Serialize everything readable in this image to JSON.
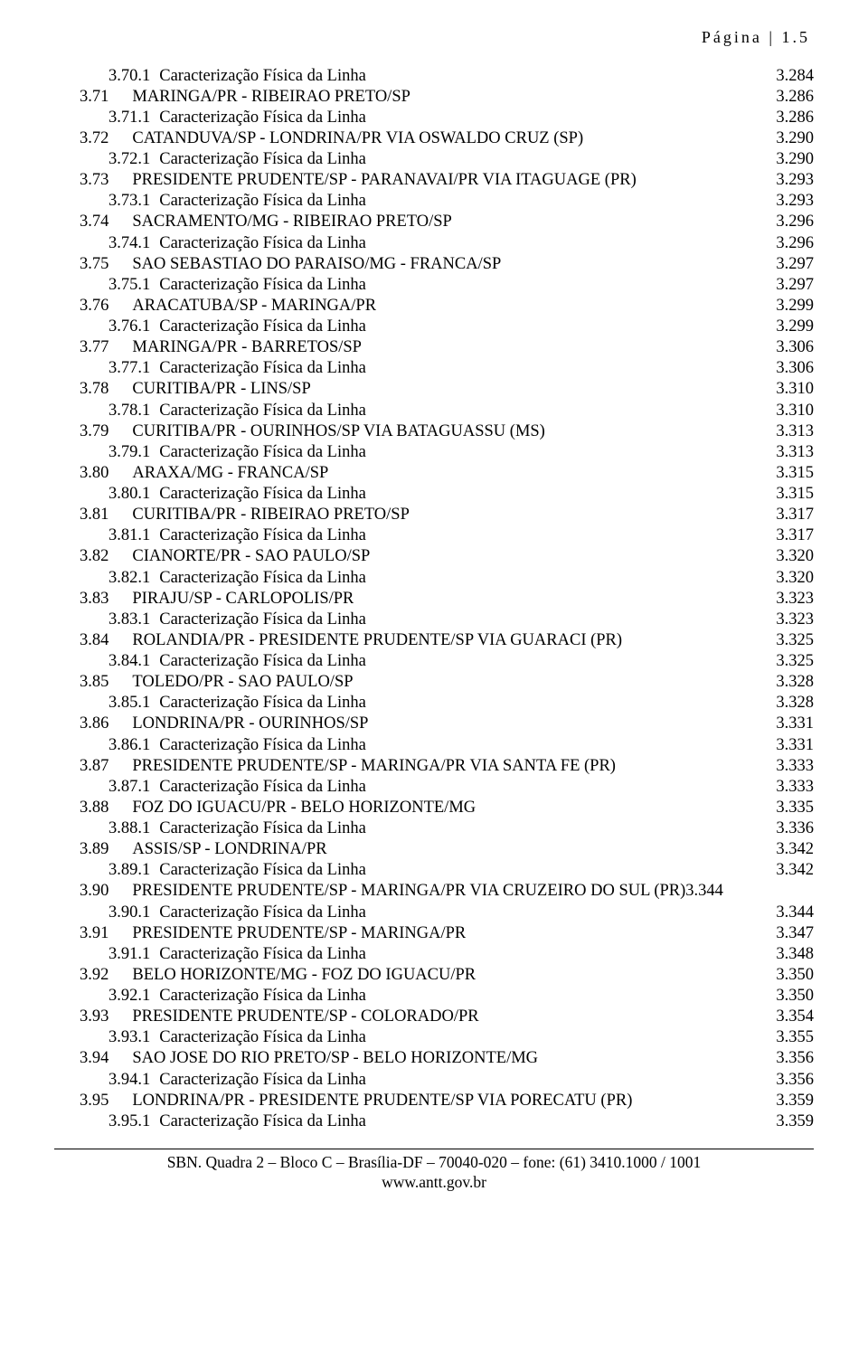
{
  "header": {
    "text": "Página | 1.5"
  },
  "defaults": {
    "caract": "Caracterização Física da Linha"
  },
  "toc": [
    {
      "n": "3.70.1",
      "t": "@caract",
      "p": "3.284",
      "lvl": 2
    },
    {
      "n": "3.71",
      "t": "MARINGA/PR - RIBEIRAO PRETO/SP",
      "p": "3.286",
      "lvl": 1
    },
    {
      "n": "3.71.1",
      "t": "@caract",
      "p": "3.286",
      "lvl": 2
    },
    {
      "n": "3.72",
      "t": "CATANDUVA/SP - LONDRINA/PR VIA OSWALDO CRUZ (SP)",
      "p": "3.290",
      "lvl": 1
    },
    {
      "n": "3.72.1",
      "t": "@caract",
      "p": "3.290",
      "lvl": 2
    },
    {
      "n": "3.73",
      "t": "PRESIDENTE PRUDENTE/SP - PARANAVAI/PR VIA ITAGUAGE (PR)",
      "p": "3.293",
      "lvl": 1
    },
    {
      "n": "3.73.1",
      "t": "@caract",
      "p": "3.293",
      "lvl": 2
    },
    {
      "n": "3.74",
      "t": "SACRAMENTO/MG - RIBEIRAO PRETO/SP",
      "p": "3.296",
      "lvl": 1
    },
    {
      "n": "3.74.1",
      "t": "@caract",
      "p": "3.296",
      "lvl": 2
    },
    {
      "n": "3.75",
      "t": "SAO SEBASTIAO DO PARAISO/MG - FRANCA/SP",
      "p": "3.297",
      "lvl": 1
    },
    {
      "n": "3.75.1",
      "t": "@caract",
      "p": "3.297",
      "lvl": 2
    },
    {
      "n": "3.76",
      "t": "ARACATUBA/SP - MARINGA/PR",
      "p": "3.299",
      "lvl": 1
    },
    {
      "n": "3.76.1",
      "t": "@caract",
      "p": "3.299",
      "lvl": 2
    },
    {
      "n": "3.77",
      "t": "MARINGA/PR - BARRETOS/SP",
      "p": "3.306",
      "lvl": 1
    },
    {
      "n": "3.77.1",
      "t": "@caract",
      "p": "3.306",
      "lvl": 2
    },
    {
      "n": "3.78",
      "t": "CURITIBA/PR - LINS/SP",
      "p": "3.310",
      "lvl": 1
    },
    {
      "n": "3.78.1",
      "t": "@caract",
      "p": "3.310",
      "lvl": 2
    },
    {
      "n": "3.79",
      "t": "CURITIBA/PR - OURINHOS/SP VIA BATAGUASSU (MS)",
      "p": "3.313",
      "lvl": 1
    },
    {
      "n": "3.79.1",
      "t": "@caract",
      "p": "3.313",
      "lvl": 2
    },
    {
      "n": "3.80",
      "t": "ARAXA/MG - FRANCA/SP",
      "p": "3.315",
      "lvl": 1
    },
    {
      "n": "3.80.1",
      "t": "@caract",
      "p": "3.315",
      "lvl": 2
    },
    {
      "n": "3.81",
      "t": "CURITIBA/PR - RIBEIRAO PRETO/SP",
      "p": "3.317",
      "lvl": 1
    },
    {
      "n": "3.81.1",
      "t": "@caract",
      "p": "3.317",
      "lvl": 2
    },
    {
      "n": "3.82",
      "t": "CIANORTE/PR - SAO PAULO/SP",
      "p": "3.320",
      "lvl": 1
    },
    {
      "n": "3.82.1",
      "t": "@caract",
      "p": "3.320",
      "lvl": 2
    },
    {
      "n": "3.83",
      "t": "PIRAJU/SP - CARLOPOLIS/PR",
      "p": "3.323",
      "lvl": 1
    },
    {
      "n": "3.83.1",
      "t": "@caract",
      "p": "3.323",
      "lvl": 2
    },
    {
      "n": "3.84",
      "t": "ROLANDIA/PR - PRESIDENTE PRUDENTE/SP VIA GUARACI (PR)",
      "p": "3.325",
      "lvl": 1
    },
    {
      "n": "3.84.1",
      "t": "@caract",
      "p": "3.325",
      "lvl": 2
    },
    {
      "n": "3.85",
      "t": "TOLEDO/PR - SAO PAULO/SP",
      "p": "3.328",
      "lvl": 1
    },
    {
      "n": "3.85.1",
      "t": "@caract",
      "p": "3.328",
      "lvl": 2
    },
    {
      "n": "3.86",
      "t": "LONDRINA/PR - OURINHOS/SP",
      "p": "3.331",
      "lvl": 1
    },
    {
      "n": "3.86.1",
      "t": "@caract",
      "p": "3.331",
      "lvl": 2
    },
    {
      "n": "3.87",
      "t": "PRESIDENTE PRUDENTE/SP - MARINGA/PR VIA SANTA FE (PR)",
      "p": "3.333",
      "lvl": 1
    },
    {
      "n": "3.87.1",
      "t": "@caract",
      "p": "3.333",
      "lvl": 2
    },
    {
      "n": "3.88",
      "t": "FOZ DO IGUACU/PR - BELO HORIZONTE/MG",
      "p": "3.335",
      "lvl": 1
    },
    {
      "n": "3.88.1",
      "t": "@caract",
      "p": "3.336",
      "lvl": 2
    },
    {
      "n": "3.89",
      "t": "ASSIS/SP - LONDRINA/PR",
      "p": "3.342",
      "lvl": 1
    },
    {
      "n": "3.89.1",
      "t": "@caract",
      "p": "3.342",
      "lvl": 2
    },
    {
      "n": "3.90",
      "t": "PRESIDENTE PRUDENTE/SP - MARINGA/PR VIA CRUZEIRO DO SUL (PR)",
      "p": "3.344",
      "lvl": 1,
      "noleader": true
    },
    {
      "n": "3.90.1",
      "t": "@caract",
      "p": "3.344",
      "lvl": 2
    },
    {
      "n": "3.91",
      "t": "PRESIDENTE PRUDENTE/SP - MARINGA/PR",
      "p": "3.347",
      "lvl": 1
    },
    {
      "n": "3.91.1",
      "t": "@caract",
      "p": "3.348",
      "lvl": 2
    },
    {
      "n": "3.92",
      "t": "BELO HORIZONTE/MG - FOZ DO IGUACU/PR",
      "p": "3.350",
      "lvl": 1
    },
    {
      "n": "3.92.1",
      "t": "@caract",
      "p": "3.350",
      "lvl": 2
    },
    {
      "n": "3.93",
      "t": "PRESIDENTE PRUDENTE/SP - COLORADO/PR",
      "p": "3.354",
      "lvl": 1
    },
    {
      "n": "3.93.1",
      "t": "@caract",
      "p": "3.355",
      "lvl": 2
    },
    {
      "n": "3.94",
      "t": "SAO JOSE DO RIO PRETO/SP - BELO HORIZONTE/MG",
      "p": "3.356",
      "lvl": 1
    },
    {
      "n": "3.94.1",
      "t": "@caract",
      "p": "3.356",
      "lvl": 2
    },
    {
      "n": "3.95",
      "t": "LONDRINA/PR - PRESIDENTE PRUDENTE/SP VIA PORECATU (PR)",
      "p": "3.359",
      "lvl": 1
    },
    {
      "n": "3.95.1",
      "t": "@caract",
      "p": "3.359",
      "lvl": 2
    }
  ],
  "footer": {
    "line1": "SBN. Quadra 2 – Bloco C – Brasília-DF – 70040-020 – fone: (61) 3410.1000 / 1001",
    "line2": "www.antt.gov.br"
  }
}
